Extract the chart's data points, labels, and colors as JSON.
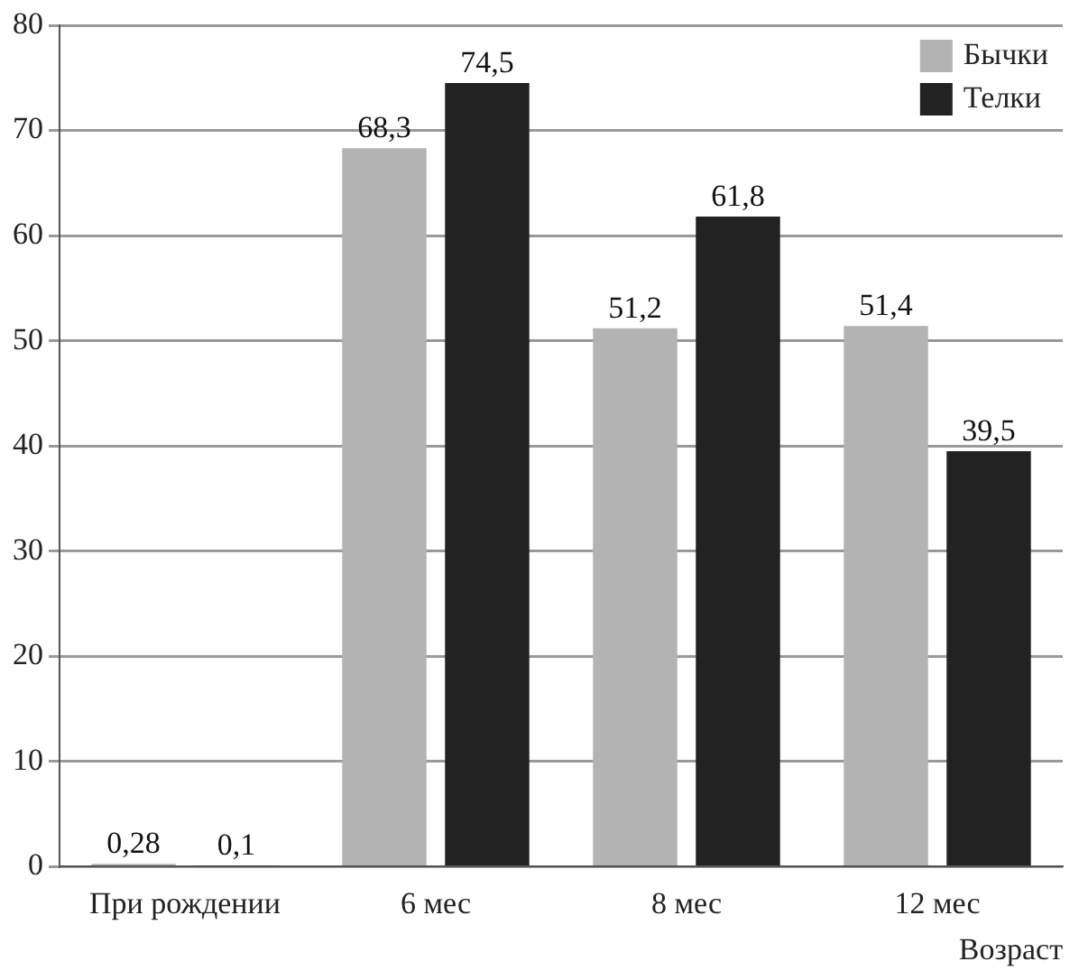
{
  "chart_data": {
    "type": "bar",
    "xlabel": "Возраст",
    "categories": [
      "При рождении",
      "6 мес",
      "8 мес",
      "12 мес"
    ],
    "series": [
      {
        "name": "Бычки",
        "color": "#b3b3b3",
        "values": [
          0.28,
          68.3,
          51.2,
          51.4
        ],
        "value_labels": [
          "0,28",
          "68,3",
          "51,2",
          "51,4"
        ]
      },
      {
        "name": "Телки",
        "color": "#222222",
        "values": [
          0.1,
          74.5,
          61.8,
          39.5
        ],
        "value_labels": [
          "0,1",
          "74,5",
          "61,8",
          "39,5"
        ]
      }
    ],
    "ylim": [
      0,
      80
    ],
    "yticks": [
      0,
      10,
      20,
      30,
      40,
      50,
      60,
      70,
      80
    ],
    "grid": "y",
    "legend": "top right"
  }
}
